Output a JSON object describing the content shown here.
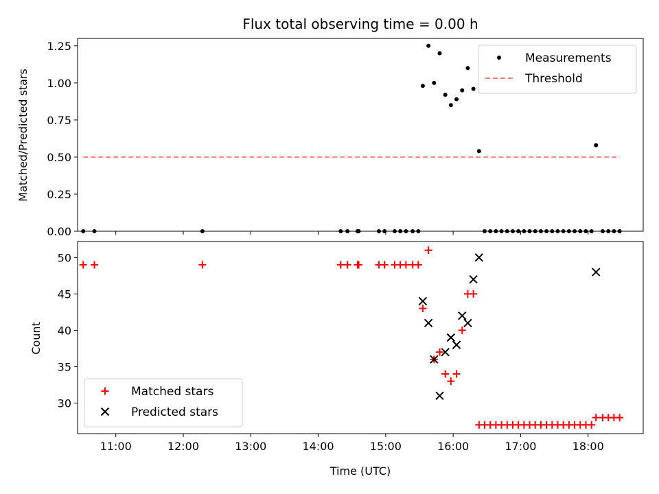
{
  "chart_data": [
    {
      "type": "scatter",
      "title": "Flux total observing time = 0.00 h",
      "ylabel": "Matched/Predicted stars",
      "xlabel": "",
      "x_axis": "time",
      "xlim": [
        "10:26",
        "18:49"
      ],
      "ylim": [
        0,
        1.3
      ],
      "yticks": [
        0.0,
        0.25,
        0.5,
        0.75,
        1.0,
        1.25
      ],
      "ytick_labels": [
        "0.00",
        "0.25",
        "0.50",
        "0.75",
        "1.00",
        "1.25"
      ],
      "xticks": [
        "11:00",
        "12:00",
        "13:00",
        "14:00",
        "15:00",
        "16:00",
        "17:00",
        "18:00"
      ],
      "show_xtick_labels": false,
      "grid": false,
      "legend": "top-right",
      "series": [
        {
          "name": "Measurements",
          "marker": "dot",
          "color": "#000000",
          "points": [
            [
              "10:31",
              0
            ],
            [
              "10:41",
              0
            ],
            [
              "12:17",
              0
            ],
            [
              "14:20",
              0
            ],
            [
              "14:26",
              0
            ],
            [
              "14:35",
              0
            ],
            [
              "14:36",
              0
            ],
            [
              "14:54",
              0
            ],
            [
              "14:59",
              0
            ],
            [
              "15:08",
              0
            ],
            [
              "15:13",
              0
            ],
            [
              "15:18",
              0
            ],
            [
              "15:24",
              0
            ],
            [
              "15:29",
              0
            ],
            [
              "15:33",
              0.98
            ],
            [
              "15:38",
              1.25
            ],
            [
              "15:43",
              1.0
            ],
            [
              "15:48",
              1.2
            ],
            [
              "15:53",
              0.92
            ],
            [
              "15:58",
              0.85
            ],
            [
              "16:03",
              0.89
            ],
            [
              "16:08",
              0.95
            ],
            [
              "16:13",
              1.1
            ],
            [
              "16:18",
              0.96
            ],
            [
              "16:23",
              0.54
            ],
            [
              "16:28",
              0
            ],
            [
              "16:33",
              0
            ],
            [
              "16:38",
              0
            ],
            [
              "16:43",
              0
            ],
            [
              "16:48",
              0
            ],
            [
              "16:53",
              0
            ],
            [
              "16:58",
              0
            ],
            [
              "17:03",
              0
            ],
            [
              "17:08",
              0
            ],
            [
              "17:13",
              0
            ],
            [
              "17:18",
              0
            ],
            [
              "17:23",
              0
            ],
            [
              "17:28",
              0
            ],
            [
              "17:33",
              0
            ],
            [
              "17:38",
              0
            ],
            [
              "17:43",
              0
            ],
            [
              "17:48",
              0
            ],
            [
              "17:53",
              0
            ],
            [
              "17:58",
              0
            ],
            [
              "18:03",
              0
            ],
            [
              "18:07",
              0.58
            ],
            [
              "18:13",
              0
            ],
            [
              "18:18",
              0
            ],
            [
              "18:23",
              0
            ],
            [
              "18:28",
              0
            ]
          ]
        },
        {
          "name": "Threshold",
          "style": "dashed-line",
          "color": "#ff8080",
          "points": [
            [
              "10:31",
              0.5
            ],
            [
              "18:28",
              0.5
            ]
          ]
        }
      ]
    },
    {
      "type": "scatter",
      "title": "",
      "ylabel": "Count",
      "xlabel": "Time (UTC)",
      "x_axis": "time",
      "xlim": [
        "10:26",
        "18:49"
      ],
      "ylim": [
        25.8,
        52.2
      ],
      "yticks": [
        30,
        35,
        40,
        45,
        50
      ],
      "ytick_labels": [
        "30",
        "35",
        "40",
        "45",
        "50"
      ],
      "xticks": [
        "11:00",
        "12:00",
        "13:00",
        "14:00",
        "15:00",
        "16:00",
        "17:00",
        "18:00"
      ],
      "show_xtick_labels": true,
      "grid": false,
      "legend": "bottom-left",
      "series": [
        {
          "name": "Matched stars",
          "marker": "plus",
          "color": "#ff0000",
          "points": [
            [
              "10:31",
              49
            ],
            [
              "10:41",
              49
            ],
            [
              "12:17",
              49
            ],
            [
              "14:20",
              49
            ],
            [
              "14:26",
              49
            ],
            [
              "14:35",
              49
            ],
            [
              "14:36",
              49
            ],
            [
              "14:54",
              49
            ],
            [
              "14:59",
              49
            ],
            [
              "15:08",
              49
            ],
            [
              "15:13",
              49
            ],
            [
              "15:18",
              49
            ],
            [
              "15:24",
              49
            ],
            [
              "15:29",
              49
            ],
            [
              "15:33",
              43
            ],
            [
              "15:38",
              51
            ],
            [
              "15:43",
              36
            ],
            [
              "15:48",
              37
            ],
            [
              "15:53",
              34
            ],
            [
              "15:58",
              33
            ],
            [
              "16:03",
              34
            ],
            [
              "16:08",
              40
            ],
            [
              "16:13",
              45
            ],
            [
              "16:18",
              45
            ],
            [
              "16:23",
              27
            ],
            [
              "16:28",
              27
            ],
            [
              "16:33",
              27
            ],
            [
              "16:38",
              27
            ],
            [
              "16:43",
              27
            ],
            [
              "16:48",
              27
            ],
            [
              "16:53",
              27
            ],
            [
              "16:58",
              27
            ],
            [
              "17:03",
              27
            ],
            [
              "17:08",
              27
            ],
            [
              "17:13",
              27
            ],
            [
              "17:18",
              27
            ],
            [
              "17:23",
              27
            ],
            [
              "17:28",
              27
            ],
            [
              "17:33",
              27
            ],
            [
              "17:38",
              27
            ],
            [
              "17:43",
              27
            ],
            [
              "17:48",
              27
            ],
            [
              "17:53",
              27
            ],
            [
              "17:58",
              27
            ],
            [
              "18:03",
              27
            ],
            [
              "18:07",
              28
            ],
            [
              "18:13",
              28
            ],
            [
              "18:18",
              28
            ],
            [
              "18:23",
              28
            ],
            [
              "18:28",
              28
            ]
          ]
        },
        {
          "name": "Predicted stars",
          "marker": "x",
          "color": "#000000",
          "points": [
            [
              "15:33",
              44
            ],
            [
              "15:38",
              41
            ],
            [
              "15:43",
              36
            ],
            [
              "15:48",
              31
            ],
            [
              "15:53",
              37
            ],
            [
              "15:58",
              39
            ],
            [
              "16:03",
              38
            ],
            [
              "16:08",
              42
            ],
            [
              "16:13",
              41
            ],
            [
              "16:18",
              47
            ],
            [
              "16:23",
              50
            ],
            [
              "18:07",
              48
            ]
          ]
        }
      ]
    }
  ]
}
